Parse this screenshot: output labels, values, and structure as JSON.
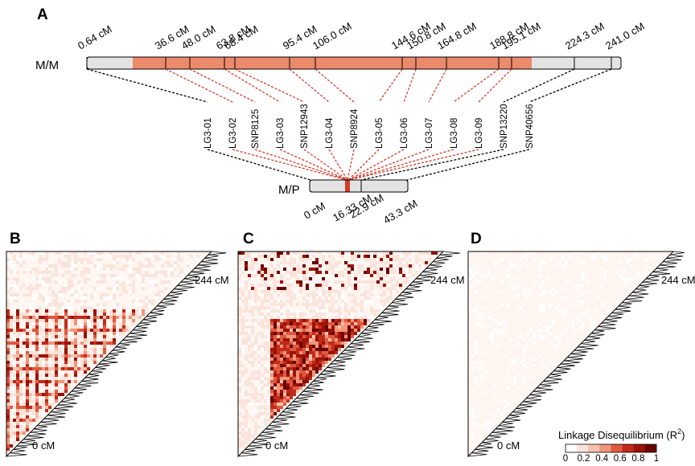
{
  "panels": {
    "a": "A",
    "b": "B",
    "c": "C",
    "d": "D"
  },
  "mm": {
    "label": "M/M",
    "positions": [
      "0.64 cM",
      "36.6 cM",
      "48.0 cM",
      "63.8 cM",
      "68.4 cM",
      "95.4 cM",
      "106.0 cM",
      "144.6 cM",
      "150.8 cM",
      "164.8 cM",
      "188.8 cM",
      "195.1 cM",
      "224.3 cM",
      "241.0 cM"
    ],
    "color_highlight": "#ec8a6c",
    "color_bar": "#e3e3e3"
  },
  "markers": [
    "LG3-01",
    "LG3-02",
    "SNP8125",
    "LG3-03",
    "SNP12943",
    "LG3-04",
    "SNP8924",
    "LG3-05",
    "LG3-06",
    "LG3-07",
    "LG3-08",
    "LG3-09",
    "SNP13220",
    "SNP40656"
  ],
  "mp": {
    "label": "M/P",
    "positions": [
      "0 cM",
      "16.33 cM",
      "22.9 cM",
      "43.3 cM"
    ],
    "highlight_color": "#d33a2c"
  },
  "heatmaps": {
    "top_label": "244 cM",
    "bottom_label": "0 cM"
  },
  "legend": {
    "title": "Linkage Disequilibrium (R",
    "title_sup": "2",
    "title_close": ")",
    "ticks": [
      "0",
      "0.2",
      "0.4",
      "0.6",
      "0.8",
      "1"
    ],
    "colors": [
      "#ffffff",
      "#fbe4db",
      "#f6c3b0",
      "#ef967b",
      "#e0593e",
      "#c22a1a",
      "#9b1207",
      "#6b0202"
    ]
  }
}
